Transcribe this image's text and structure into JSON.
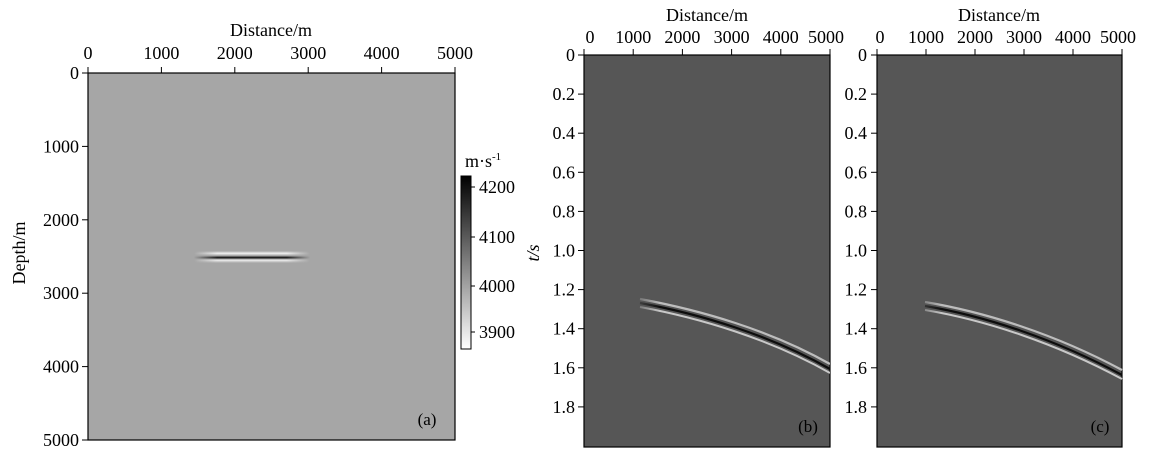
{
  "figure": {
    "panel_a": {
      "xlabel": "Distance/m",
      "ylabel": "Depth/m",
      "letter": "(a)",
      "x_ticks": [
        "0",
        "1000",
        "2000",
        "3000",
        "4000",
        "5000"
      ],
      "y_ticks": [
        "0",
        "1000",
        "2000",
        "3000",
        "4000",
        "5000"
      ],
      "colorbar": {
        "unit": "m·s",
        "unit_sup": "-1",
        "ticks": [
          "4200",
          "4100",
          "4000",
          "3900"
        ]
      }
    },
    "panel_b": {
      "xlabel": "Distance/m",
      "ylabel": "t/s",
      "letter": "(b)",
      "x_ticks": [
        "0",
        "1000",
        "2000",
        "3000",
        "4000",
        "5000"
      ],
      "y_ticks": [
        "0",
        "0.2",
        "0.4",
        "0.6",
        "0.8",
        "1.0",
        "1.2",
        "1.4",
        "1.6",
        "1.8"
      ]
    },
    "panel_c": {
      "xlabel": "Distance/m",
      "letter": "(c)",
      "x_ticks": [
        "0",
        "1000",
        "2000",
        "3000",
        "4000",
        "5000"
      ],
      "y_ticks": [
        "0",
        "0.2",
        "0.4",
        "0.6",
        "0.8",
        "1.0",
        "1.2",
        "1.4",
        "1.6",
        "1.8"
      ]
    }
  },
  "chart_data": [
    {
      "type": "heatmap",
      "panel": "(a)",
      "xlabel": "Distance/m",
      "ylabel": "Depth/m",
      "xlim": [
        0,
        5000
      ],
      "ylim": [
        0,
        5000
      ],
      "y_inverted": true,
      "background_value": 4050,
      "anomaly": {
        "x_range": [
          1500,
          3000
        ],
        "depth_center": 2520,
        "depth_halfwidth": 40
      },
      "colorbar": {
        "label": "m·s-1",
        "range": [
          3860,
          4240
        ],
        "ticks": [
          4200,
          4100,
          4000,
          3900
        ],
        "colormap": "white-to-black"
      }
    },
    {
      "type": "heatmap",
      "panel": "(b)",
      "xlabel": "Distance/m",
      "ylabel": "t/s",
      "xlim": [
        0,
        5000
      ],
      "ylim": [
        0,
        2.0
      ],
      "y_inverted": true,
      "event": {
        "x": [
          1500,
          2000,
          2500,
          3000,
          3500,
          4000,
          4500,
          5000
        ],
        "t": [
          1.25,
          1.28,
          1.32,
          1.36,
          1.41,
          1.46,
          1.52,
          1.59
        ]
      }
    },
    {
      "type": "heatmap",
      "panel": "(c)",
      "xlabel": "Distance/m",
      "xlim": [
        0,
        5000
      ],
      "ylim": [
        0,
        2.0
      ],
      "y_inverted": true,
      "event": {
        "x": [
          1500,
          2000,
          2500,
          3000,
          3500,
          4000,
          4500,
          5000
        ],
        "t": [
          1.26,
          1.29,
          1.33,
          1.38,
          1.43,
          1.48,
          1.54,
          1.61
        ]
      }
    }
  ]
}
